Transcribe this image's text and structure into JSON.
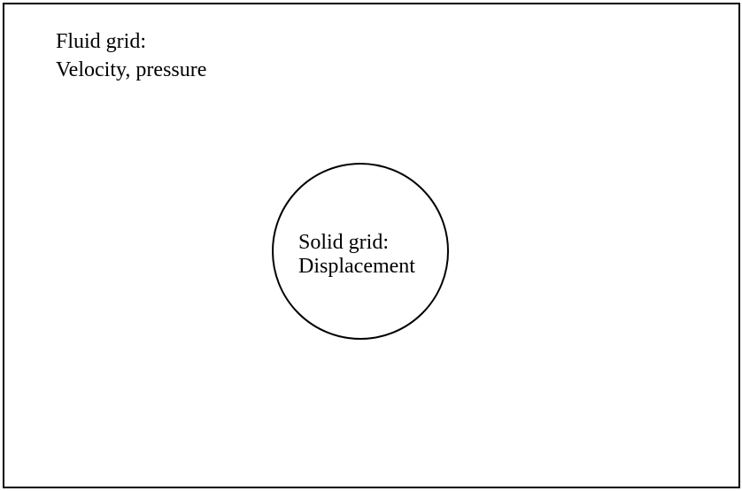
{
  "diagram": {
    "fluid": {
      "title": "Fluid grid:",
      "quantities": "Velocity, pressure"
    },
    "solid": {
      "title": "Solid grid:",
      "quantities": "Displacement"
    }
  }
}
